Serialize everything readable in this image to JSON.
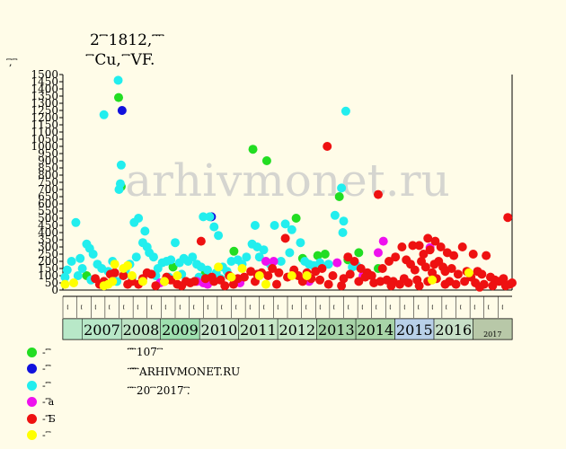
{
  "title_line1": "2 ꙯꙯꙯ 1812, ꙯꙯ ꙯",
  "title_line2": "꙯꙯ Cu, ꙯꙯ VF.",
  "ylabel": "꙯꙯, ꙯꙯",
  "watermark": "arhivmonet.ru",
  "notes": [
    "꙯꙯꙯ ꙯꙯ 107 ꙯꙯",
    "꙯ ꙯꙯꙯꙯ ꙯꙯ ARHIVMONET.RU",
    "꙯꙯ ꙯ 20 ꙯꙯ 2017 ꙯꙯."
  ],
  "legend": [
    {
      "color": "#22dd22",
      "label": "- ꙯꙯꙯"
    },
    {
      "color": "#1111dd",
      "label": "- ꙯꙯꙯"
    },
    {
      "color": "#22eeee",
      "label": "- ꙯꙯꙯"
    },
    {
      "color": "#ee11ee",
      "label": "- ꙯꙯꙯a"
    },
    {
      "color": "#ee1111",
      "label": "- ꙯꙯꙯꙯Б"
    },
    {
      "color": "#ffff00",
      "label": "- ꙯꙯"
    }
  ],
  "chart_data": {
    "type": "scatter",
    "ylim": [
      0,
      1500
    ],
    "yticks": [
      0,
      50,
      100,
      150,
      200,
      250,
      300,
      350,
      400,
      450,
      500,
      550,
      600,
      650,
      700,
      750,
      800,
      850,
      900,
      950,
      1000,
      1050,
      1100,
      1150,
      1200,
      1250,
      1300,
      1350,
      1400,
      1450,
      1500
    ],
    "years": [
      {
        "label": "2007",
        "color": "#b8e8c8"
      },
      {
        "label": "2008",
        "color": "#bfe3c4"
      },
      {
        "label": "2009",
        "color": "#9fe0b0"
      },
      {
        "label": "2010",
        "color": "#cde8cf"
      },
      {
        "label": "2011",
        "color": "#c8e8c8"
      },
      {
        "label": "2012",
        "color": "#c8e8c8"
      },
      {
        "label": "2013",
        "color": "#a8d4a8"
      },
      {
        "label": "2014",
        "color": "#a8d4a8"
      },
      {
        "label": "2015",
        "color": "#b8d0e8"
      },
      {
        "label": "2016",
        "color": "#c8e0c8"
      },
      {
        "label": "2017",
        "color": "#b8c8a8"
      }
    ],
    "halfyear_labels": [
      "꙯꙯",
      "꙯꙯",
      "꙯꙯",
      "꙯꙯",
      "꙯꙯",
      "꙯꙯",
      "꙯꙯",
      "꙯꙯",
      "꙯꙯",
      "꙯꙯",
      "꙯꙯",
      "꙯꙯",
      "꙯꙯",
      "꙯꙯",
      "꙯꙯",
      "꙯꙯",
      "꙯꙯",
      "꙯꙯",
      "꙯꙯",
      "꙯꙯",
      "꙯꙯",
      "꙯꙯",
      "꙯꙯",
      "꙯꙯",
      "꙯꙯",
      "꙯꙯",
      "꙯꙯",
      "꙯꙯",
      "꙯꙯",
      "꙯꙯",
      "꙯꙯",
      "꙯꙯"
    ],
    "series": [
      {
        "name": "- ꙯꙯꙯",
        "color": "#22dd22",
        "points": [
          [
            2008.29,
            1340
          ],
          [
            2008.35,
            720
          ],
          [
            2010.96,
            270
          ],
          [
            2011.4,
            980
          ],
          [
            2011.72,
            900
          ],
          [
            2012.4,
            500
          ],
          [
            2012.55,
            220
          ],
          [
            2012.9,
            240
          ],
          [
            2013.07,
            250
          ],
          [
            2013.4,
            650
          ],
          [
            2013.6,
            210
          ],
          [
            2013.85,
            260
          ],
          [
            2014.3,
            150
          ],
          [
            2007.55,
            100
          ],
          [
            2009.55,
            160
          ],
          [
            2010.3,
            120
          ]
        ]
      },
      {
        "name": "- ꙯꙯꙯",
        "color": "#1111dd",
        "points": [
          [
            2008.37,
            1250
          ],
          [
            2010.44,
            510
          ]
        ]
      },
      {
        "name": "- ꙯꙯꙯",
        "color": "#22eeee",
        "points": [
          [
            2008.28,
            1460
          ],
          [
            2007.95,
            1220
          ],
          [
            2008.35,
            870
          ],
          [
            2008.33,
            740
          ],
          [
            2008.3,
            700
          ],
          [
            2007.3,
            470
          ],
          [
            2008.65,
            470
          ],
          [
            2008.75,
            500
          ],
          [
            2008.9,
            410
          ],
          [
            2010.25,
            510
          ],
          [
            2010.4,
            510
          ],
          [
            2010.5,
            440
          ],
          [
            2010.6,
            380
          ],
          [
            2011.45,
            450
          ],
          [
            2011.38,
            320
          ],
          [
            2011.5,
            300
          ],
          [
            2011.65,
            280
          ],
          [
            2011.9,
            450
          ],
          [
            2012.15,
            460
          ],
          [
            2012.3,
            420
          ],
          [
            2012.5,
            330
          ],
          [
            2013.3,
            520
          ],
          [
            2013.45,
            710
          ],
          [
            2013.5,
            480
          ],
          [
            2013.55,
            1245
          ],
          [
            2013.48,
            400
          ],
          [
            2007.1,
            140
          ],
          [
            2007.2,
            200
          ],
          [
            2007.4,
            220
          ],
          [
            2007.55,
            320
          ],
          [
            2007.62,
            290
          ],
          [
            2007.7,
            250
          ],
          [
            2007.8,
            180
          ],
          [
            2007.9,
            150
          ],
          [
            2008.05,
            130
          ],
          [
            2008.15,
            200
          ],
          [
            2008.45,
            140
          ],
          [
            2008.55,
            180
          ],
          [
            2008.7,
            230
          ],
          [
            2008.85,
            330
          ],
          [
            2008.95,
            300
          ],
          [
            2009.0,
            260
          ],
          [
            2009.1,
            230
          ],
          [
            2009.2,
            150
          ],
          [
            2009.3,
            190
          ],
          [
            2009.4,
            200
          ],
          [
            2009.5,
            210
          ],
          [
            2009.6,
            330
          ],
          [
            2009.7,
            190
          ],
          [
            2009.8,
            220
          ],
          [
            2009.9,
            200
          ],
          [
            2010.0,
            230
          ],
          [
            2010.1,
            180
          ],
          [
            2010.2,
            160
          ],
          [
            2010.35,
            140
          ],
          [
            2010.55,
            120
          ],
          [
            2010.7,
            160
          ],
          [
            2010.8,
            130
          ],
          [
            2010.9,
            200
          ],
          [
            2011.05,
            210
          ],
          [
            2011.15,
            180
          ],
          [
            2011.25,
            230
          ],
          [
            2011.55,
            230
          ],
          [
            2011.8,
            180
          ],
          [
            2012.05,
            200
          ],
          [
            2012.25,
            260
          ],
          [
            2012.6,
            200
          ],
          [
            2012.7,
            180
          ],
          [
            2012.8,
            170
          ],
          [
            2012.95,
            190
          ],
          [
            2013.15,
            180
          ],
          [
            2013.7,
            160
          ],
          [
            2013.8,
            170
          ],
          [
            2007.45,
            150
          ],
          [
            2007.05,
            90
          ],
          [
            2007.35,
            100
          ],
          [
            2007.65,
            70
          ],
          [
            2008.25,
            60
          ],
          [
            2008.6,
            90
          ],
          [
            2009.15,
            100
          ],
          [
            2009.45,
            90
          ],
          [
            2009.75,
            110
          ],
          [
            2010.15,
            90
          ],
          [
            2010.65,
            80
          ]
        ]
      },
      {
        "name": "- ꙯꙯꙯a",
        "color": "#ee11ee",
        "points": [
          [
            2011.7,
            200
          ],
          [
            2011.88,
            200
          ],
          [
            2013.35,
            190
          ],
          [
            2014.3,
            260
          ],
          [
            2014.42,
            340
          ],
          [
            2015.5,
            295
          ],
          [
            2010.1,
            60
          ],
          [
            2010.25,
            50
          ],
          [
            2010.35,
            40
          ],
          [
            2011.1,
            50
          ],
          [
            2012.7,
            60
          ],
          [
            2013.95,
            100
          ],
          [
            2009.25,
            50
          ]
        ]
      },
      {
        "name": "- ꙯꙯꙯꙯Б",
        "color": "#ee1111",
        "points": [
          [
            2013.12,
            1000
          ],
          [
            2014.3,
            665
          ],
          [
            2012.15,
            360
          ],
          [
            2010.2,
            340
          ],
          [
            2014.85,
            300
          ],
          [
            2015.1,
            310
          ],
          [
            2015.25,
            310
          ],
          [
            2015.45,
            360
          ],
          [
            2015.5,
            280
          ],
          [
            2015.62,
            340
          ],
          [
            2015.75,
            300
          ],
          [
            2015.9,
            260
          ],
          [
            2016.05,
            240
          ],
          [
            2016.25,
            300
          ],
          [
            2016.5,
            250
          ],
          [
            2016.8,
            240
          ],
          [
            2017.3,
            505
          ],
          [
            2013.6,
            230
          ],
          [
            2013.75,
            200
          ],
          [
            2013.9,
            150
          ],
          [
            2014.05,
            120
          ],
          [
            2014.15,
            100
          ],
          [
            2014.4,
            150
          ],
          [
            2014.55,
            200
          ],
          [
            2014.7,
            230
          ],
          [
            2014.95,
            210
          ],
          [
            2015.05,
            180
          ],
          [
            2015.15,
            140
          ],
          [
            2015.3,
            200
          ],
          [
            2015.35,
            250
          ],
          [
            2015.4,
            160
          ],
          [
            2015.55,
            120
          ],
          [
            2015.6,
            180
          ],
          [
            2015.7,
            200
          ],
          [
            2015.8,
            160
          ],
          [
            2015.85,
            130
          ],
          [
            2016.0,
            150
          ],
          [
            2016.15,
            110
          ],
          [
            2016.35,
            130
          ],
          [
            2016.45,
            90
          ],
          [
            2016.6,
            130
          ],
          [
            2016.7,
            110
          ],
          [
            2016.9,
            90
          ],
          [
            2017.0,
            70
          ],
          [
            2017.1,
            60
          ],
          [
            2017.2,
            80
          ],
          [
            2017.35,
            40
          ],
          [
            2013.0,
            150
          ],
          [
            2012.85,
            130
          ],
          [
            2012.65,
            120
          ],
          [
            2012.45,
            100
          ],
          [
            2012.35,
            140
          ],
          [
            2012.2,
            90
          ],
          [
            2012.0,
            120
          ],
          [
            2011.85,
            150
          ],
          [
            2011.75,
            100
          ],
          [
            2011.6,
            120
          ],
          [
            2011.5,
            110
          ],
          [
            2011.35,
            130
          ],
          [
            2011.2,
            90
          ],
          [
            2011.05,
            80
          ],
          [
            2010.85,
            100
          ],
          [
            2010.65,
            70
          ],
          [
            2010.5,
            60
          ],
          [
            2010.45,
            90
          ],
          [
            2010.3,
            80
          ],
          [
            2010.05,
            60
          ],
          [
            2009.95,
            50
          ],
          [
            2009.85,
            60
          ],
          [
            2009.65,
            40
          ],
          [
            2009.5,
            70
          ],
          [
            2009.4,
            90
          ],
          [
            2009.35,
            60
          ],
          [
            2009.05,
            110
          ],
          [
            2008.95,
            120
          ],
          [
            2008.85,
            80
          ],
          [
            2008.6,
            60
          ],
          [
            2008.4,
            100
          ],
          [
            2008.2,
            120
          ],
          [
            2008.1,
            110
          ],
          [
            2007.95,
            60
          ],
          [
            2007.85,
            40
          ],
          [
            2007.75,
            80
          ],
          [
            2013.25,
            100
          ],
          [
            2013.5,
            80
          ],
          [
            2013.65,
            110
          ],
          [
            2013.85,
            60
          ],
          [
            2014.0,
            90
          ],
          [
            2014.2,
            50
          ],
          [
            2014.35,
            60
          ],
          [
            2014.5,
            70
          ],
          [
            2014.65,
            60
          ],
          [
            2014.8,
            40
          ],
          [
            2014.9,
            80
          ],
          [
            2015.0,
            50
          ],
          [
            2015.2,
            70
          ],
          [
            2015.45,
            60
          ],
          [
            2015.65,
            80
          ],
          [
            2015.95,
            60
          ],
          [
            2016.1,
            40
          ],
          [
            2016.3,
            60
          ],
          [
            2016.55,
            50
          ],
          [
            2016.75,
            40
          ],
          [
            2016.95,
            30
          ],
          [
            2017.25,
            30
          ],
          [
            2017.4,
            50
          ],
          [
            2012.55,
            60
          ],
          [
            2012.75,
            80
          ],
          [
            2012.95,
            70
          ],
          [
            2013.15,
            40
          ],
          [
            2013.45,
            30
          ],
          [
            2014.6,
            30
          ],
          [
            2015.25,
            30
          ],
          [
            2015.85,
            40
          ],
          [
            2016.65,
            20
          ],
          [
            2011.95,
            40
          ],
          [
            2011.45,
            60
          ],
          [
            2010.95,
            40
          ],
          [
            2010.75,
            30
          ],
          [
            2009.75,
            30
          ],
          [
            2009.15,
            30
          ],
          [
            2008.75,
            40
          ],
          [
            2008.5,
            40
          ]
        ]
      },
      {
        "name": "- ꙯꙯",
        "color": "#ffff00",
        "points": [
          [
            2008.2,
            180
          ],
          [
            2008.4,
            150
          ],
          [
            2008.5,
            170
          ],
          [
            2008.6,
            100
          ],
          [
            2008.85,
            60
          ],
          [
            2010.6,
            160
          ],
          [
            2011.15,
            150
          ],
          [
            2011.55,
            100
          ],
          [
            2011.7,
            40
          ],
          [
            2012.3,
            100
          ],
          [
            2012.65,
            100
          ],
          [
            2007.05,
            40
          ],
          [
            2007.25,
            50
          ],
          [
            2007.95,
            30
          ],
          [
            2008.05,
            40
          ],
          [
            2008.15,
            60
          ],
          [
            2009.35,
            60
          ],
          [
            2009.65,
            100
          ],
          [
            2010.9,
            90
          ],
          [
            2015.55,
            70
          ],
          [
            2016.4,
            120
          ]
        ]
      }
    ]
  }
}
